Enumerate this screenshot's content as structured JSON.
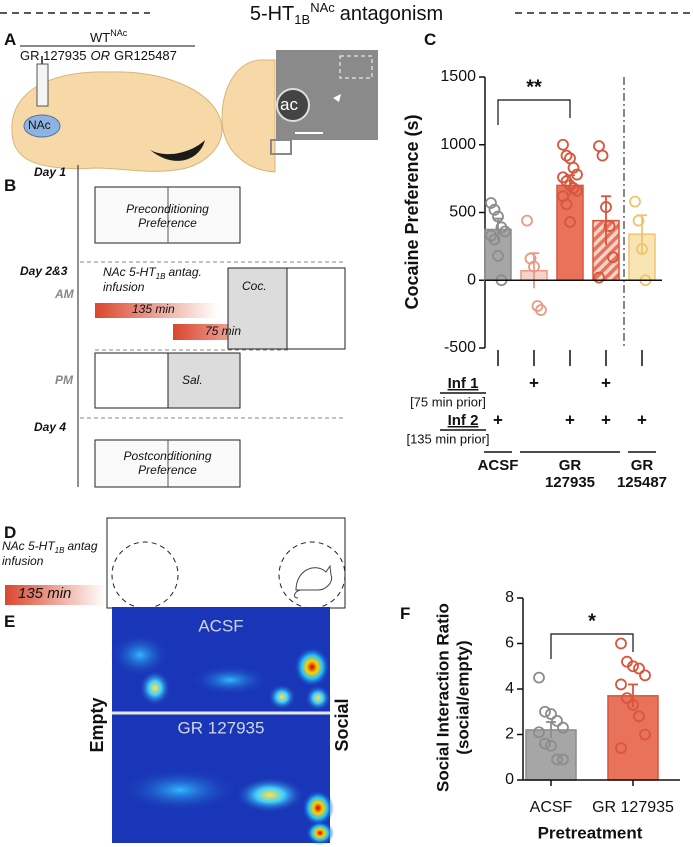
{
  "header": {
    "title": "5-HT",
    "title_sub": "1B",
    "title_sup": "NAc",
    "title_rest": "antagonism"
  },
  "panels": {
    "A": {
      "label": "A",
      "genotype": "WT",
      "genotype_sup": "NAc",
      "drug_1": "GR 127935",
      "or": "OR",
      "drug_2": "GR125487",
      "region": "NAc",
      "landmark": "ac"
    },
    "B": {
      "label": "B",
      "day1": "Day 1",
      "pre": "Preconditioning Preference",
      "day23": "Day 2&3",
      "am": "AM",
      "infusion": "NAc 5-HT",
      "infusion_sub": "1B",
      "infusion_rest": "antag. infusion",
      "t135": "135 min",
      "t75": "75 min",
      "coc": "Coc.",
      "pm": "PM",
      "sal": "Sal.",
      "day4": "Day 4",
      "post": "Postconditioning Preference"
    },
    "D": {
      "label": "D",
      "infusion": "NAc 5-HT",
      "infusion_sub": "1B",
      "infusion_rest": "antag infusion",
      "time": "135 min"
    },
    "E": {
      "label": "E",
      "top": "ACSF",
      "bottom": "GR 127935",
      "left": "Empty",
      "right": "Social"
    }
  },
  "chart_data": [
    {
      "type": "bar",
      "panel": "C",
      "ylabel": "Cocaine Preference (s)",
      "categories": [
        null,
        null,
        null,
        null,
        null
      ],
      "values": [
        375,
        70,
        700,
        440,
        340
      ],
      "errors": [
        80,
        130,
        75,
        180,
        140
      ],
      "points": [
        [
          570,
          520,
          470,
          390,
          360,
          330,
          300,
          180,
          0
        ],
        [
          440,
          160,
          100,
          -190,
          -220
        ],
        [
          1000,
          920,
          900,
          830,
          780,
          760,
          730,
          700,
          680,
          660,
          620,
          560,
          430
        ],
        [
          990,
          920,
          540,
          400,
          170,
          20
        ],
        [
          580,
          440,
          230,
          0
        ]
      ],
      "colors": [
        "#a6a6a6",
        "#f6d3c9",
        "#e8735a",
        "#e8735a",
        "#f8e4b4"
      ],
      "edge_colors": [
        "#8c8c8c",
        "#e89a86",
        "#d9553c",
        "#d9553c",
        "#efc56c"
      ],
      "hatched": [
        false,
        false,
        false,
        true,
        false
      ],
      "ylim": [
        -500,
        1500
      ],
      "yticks": [
        -500,
        0,
        500,
        1000,
        1500
      ],
      "annotations": [
        {
          "text": "**",
          "between": [
            0,
            2
          ]
        }
      ],
      "divider_after": 3,
      "design": [
        {
          "name": "Inf 1",
          "note": "[75 min prior]",
          "given": [
            false,
            true,
            false,
            true,
            false
          ]
        },
        {
          "name": "Inf 2",
          "note": "[135 min prior]",
          "given": [
            true,
            false,
            true,
            true,
            true
          ]
        }
      ],
      "mark_text": "+",
      "groups": [
        "ACSF",
        "GR 127935",
        "GR 125487"
      ],
      "group_of": [
        0,
        1,
        1,
        1,
        2
      ]
    },
    {
      "type": "bar",
      "panel": "F",
      "ylabel": "Social Interaction Ratio (social/empty)",
      "xlabel": "Pretreatment",
      "categories": [
        "ACSF",
        "GR 127935"
      ],
      "values": [
        2.2,
        3.7
      ],
      "errors": [
        0.35,
        0.5
      ],
      "points": [
        [
          4.5,
          3.0,
          2.9,
          2.6,
          2.3,
          2.1,
          1.6,
          1.5,
          0.9,
          0.9
        ],
        [
          6.0,
          5.2,
          5.0,
          4.9,
          4.6,
          4.2,
          3.6,
          3.3,
          2.8,
          2.0,
          1.4
        ]
      ],
      "colors": [
        "#a6a6a6",
        "#e8735a"
      ],
      "edge_colors": [
        "#8c8c8c",
        "#d9553c"
      ],
      "ylim": [
        0,
        8
      ],
      "yticks": [
        0,
        2,
        4,
        6,
        8
      ],
      "annotations": [
        {
          "text": "*",
          "between": [
            0,
            1
          ]
        }
      ]
    }
  ]
}
